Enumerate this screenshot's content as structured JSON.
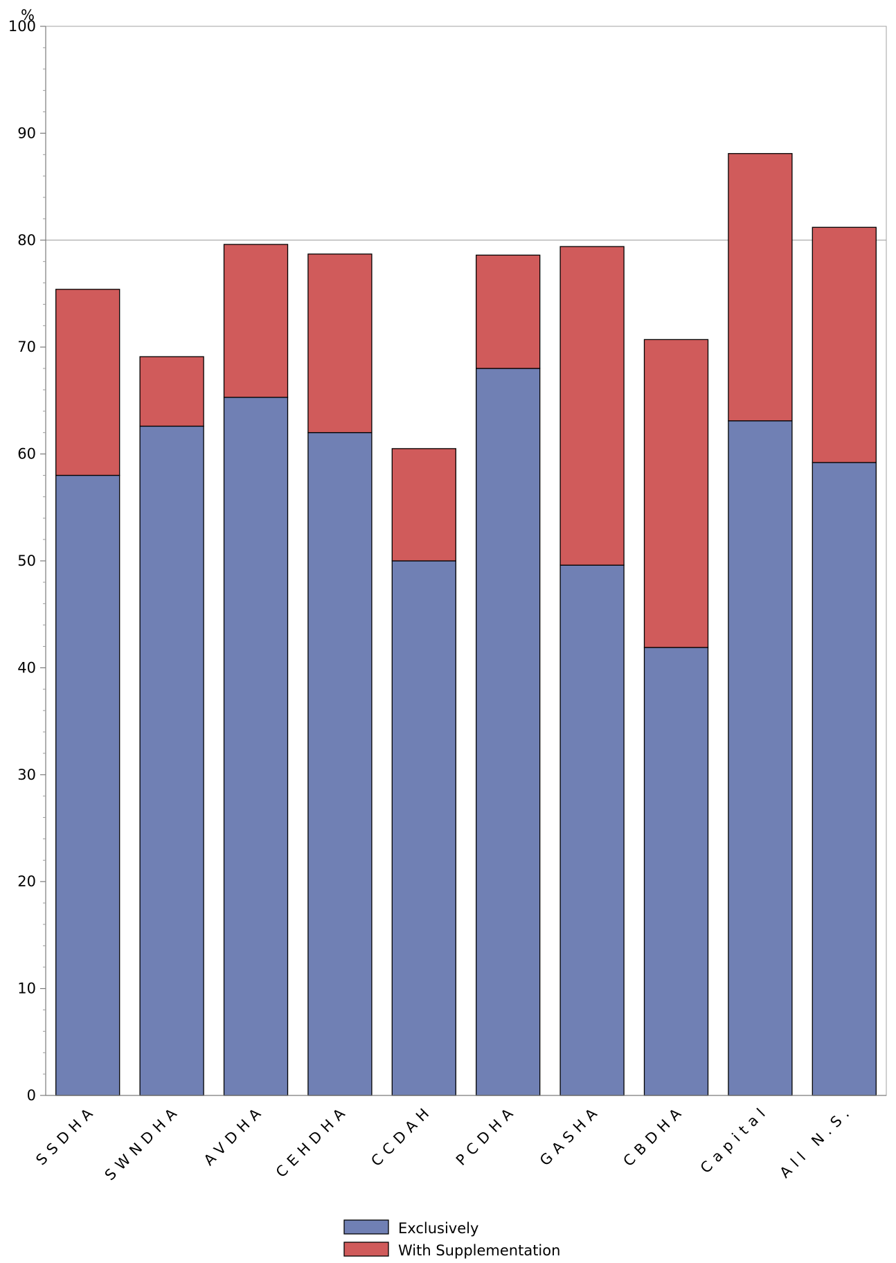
{
  "chart_data": {
    "type": "bar",
    "stacked": true,
    "ylabel": "%",
    "ylim": [
      0,
      100
    ],
    "yticks": [
      0,
      10,
      20,
      30,
      40,
      50,
      60,
      70,
      80,
      90,
      100
    ],
    "reference_line": 80,
    "categories": [
      "SSDHA",
      "SWNDHA",
      "AVDHA",
      "CEHDHA",
      "CCDAH",
      "PCDHA",
      "GASHA",
      "CBDHA",
      "Capital",
      "All N.S."
    ],
    "series": [
      {
        "name": "Exclusively",
        "color": "#7080b4",
        "values": [
          58.0,
          62.6,
          65.3,
          62.0,
          50.0,
          68.0,
          49.6,
          41.9,
          63.1,
          59.2
        ]
      },
      {
        "name": "With Supplementation",
        "color": "#d05b5b",
        "values": [
          17.4,
          6.5,
          14.3,
          16.7,
          10.5,
          10.6,
          29.8,
          28.8,
          25.0,
          22.0
        ]
      }
    ],
    "grid": false,
    "legend_position": "bottom"
  }
}
